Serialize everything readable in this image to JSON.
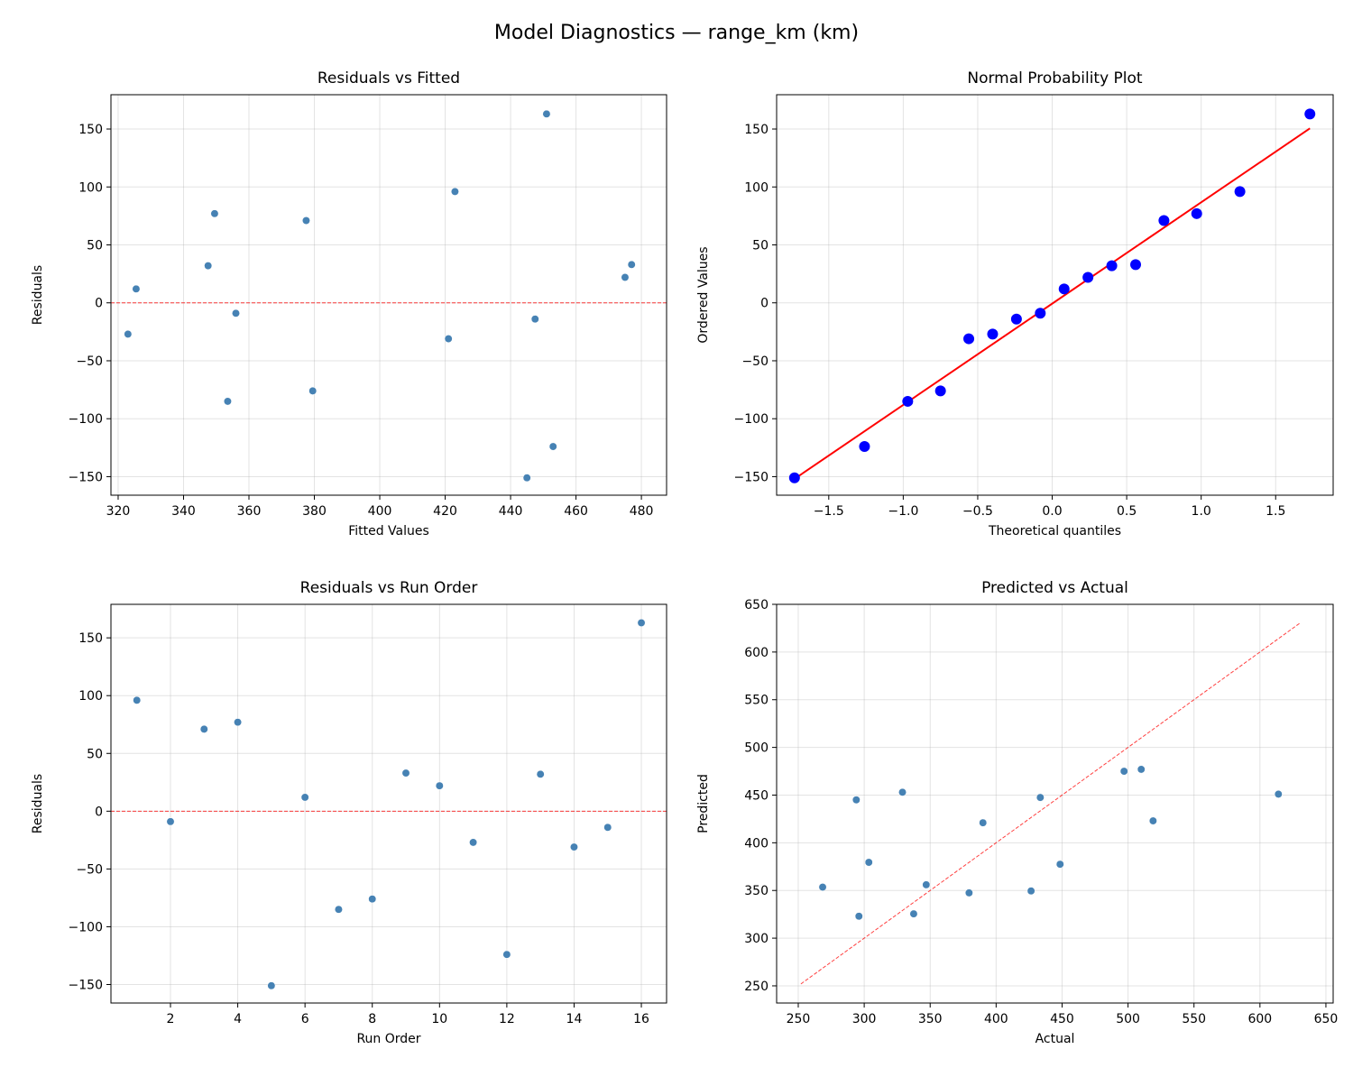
{
  "chart_data": [
    {
      "type": "scatter",
      "title": "Residuals vs Fitted",
      "xlabel": "Fitted Values",
      "ylabel": "Residuals",
      "xlim": [
        317.8,
        487.7
      ],
      "ylim": [
        -166,
        179.6
      ],
      "xticks": [
        320,
        340,
        360,
        380,
        400,
        420,
        440,
        460,
        480
      ],
      "yticks": [
        -150,
        -100,
        -50,
        0,
        50,
        100,
        150
      ],
      "grid": true,
      "x": [
        423,
        356,
        377.5,
        349.5,
        445,
        325.5,
        353.5,
        379.5,
        477,
        475,
        323,
        453,
        347.5,
        421,
        447.5,
        451
      ],
      "y": [
        96,
        -9,
        71,
        77,
        -151,
        12,
        -85,
        -76,
        33,
        22,
        -27,
        -124,
        32,
        -31,
        -14,
        163
      ],
      "point_color": "#4682b4",
      "reference_line": {
        "type": "horizontal",
        "value": 0,
        "style": "dashed",
        "color": "#ff0000"
      }
    },
    {
      "type": "scatter",
      "title": "Normal Probability Plot",
      "xlabel": "Theoretical quantiles",
      "ylabel": "Ordered Values",
      "xlim": [
        -1.85,
        1.886
      ],
      "ylim": [
        -166,
        179.6
      ],
      "xticks": [
        -1.5,
        -1.0,
        -0.5,
        0.0,
        0.5,
        1.0,
        1.5
      ],
      "xtick_labels": [
        "−1.5",
        "−1.0",
        "−0.5",
        "0.0",
        "0.5",
        "1.0",
        "1.5"
      ],
      "yticks": [
        -150,
        -100,
        -50,
        0,
        50,
        100,
        150
      ],
      "grid": true,
      "x": [
        -1.73,
        -1.26,
        -0.97,
        -0.75,
        -0.56,
        -0.4,
        -0.24,
        -0.08,
        0.08,
        0.24,
        0.4,
        0.56,
        0.75,
        0.97,
        1.26,
        1.73
      ],
      "y": [
        -151,
        -124,
        -85,
        -76,
        -31,
        -27,
        -14,
        -9,
        12,
        22,
        32,
        33,
        71,
        77,
        96,
        163
      ],
      "point_color": "#0000ff",
      "reference_line": {
        "type": "fit",
        "style": "solid",
        "color": "#ff0000"
      }
    },
    {
      "type": "scatter",
      "title": "Residuals vs Run Order",
      "xlabel": "Run Order",
      "ylabel": "Residuals",
      "xlim": [
        0.23,
        16.75
      ],
      "ylim": [
        -166,
        179
      ],
      "xticks": [
        2,
        4,
        6,
        8,
        10,
        12,
        14,
        16
      ],
      "yticks": [
        -150,
        -100,
        -50,
        0,
        50,
        100,
        150
      ],
      "grid": true,
      "x": [
        1,
        2,
        3,
        4,
        5,
        6,
        7,
        8,
        9,
        10,
        11,
        12,
        13,
        14,
        15,
        16
      ],
      "y": [
        96,
        -9,
        71,
        77,
        -151,
        12,
        -85,
        -76,
        33,
        22,
        -27,
        -124,
        32,
        -31,
        -14,
        163
      ],
      "point_color": "#4682b4",
      "reference_line": {
        "type": "horizontal",
        "value": 0,
        "style": "dashed",
        "color": "#ff0000"
      }
    },
    {
      "type": "scatter",
      "title": "Predicted vs Actual",
      "xlabel": "Actual",
      "ylabel": "Predicted",
      "xlim": [
        233.6,
        655.5
      ],
      "ylim": [
        232,
        650
      ],
      "xticks": [
        250,
        300,
        350,
        400,
        450,
        500,
        550,
        600,
        650
      ],
      "yticks": [
        250,
        300,
        350,
        400,
        450,
        500,
        550,
        600,
        650
      ],
      "grid": true,
      "x": [
        519,
        347,
        448.5,
        426.5,
        294,
        337.5,
        268.5,
        303.5,
        510,
        497,
        296,
        329,
        379.5,
        390,
        433.5,
        614
      ],
      "y": [
        423,
        356,
        377.5,
        349.5,
        445,
        325.5,
        353.5,
        379.5,
        477,
        475,
        323,
        453,
        347.5,
        421,
        447.5,
        451
      ],
      "point_color": "#4682b4",
      "reference_line": {
        "type": "identity",
        "from": 252,
        "to": 630,
        "style": "dashed",
        "color": "#ff0000"
      }
    }
  ],
  "suptitle": "Model Diagnostics — range_km (km)"
}
